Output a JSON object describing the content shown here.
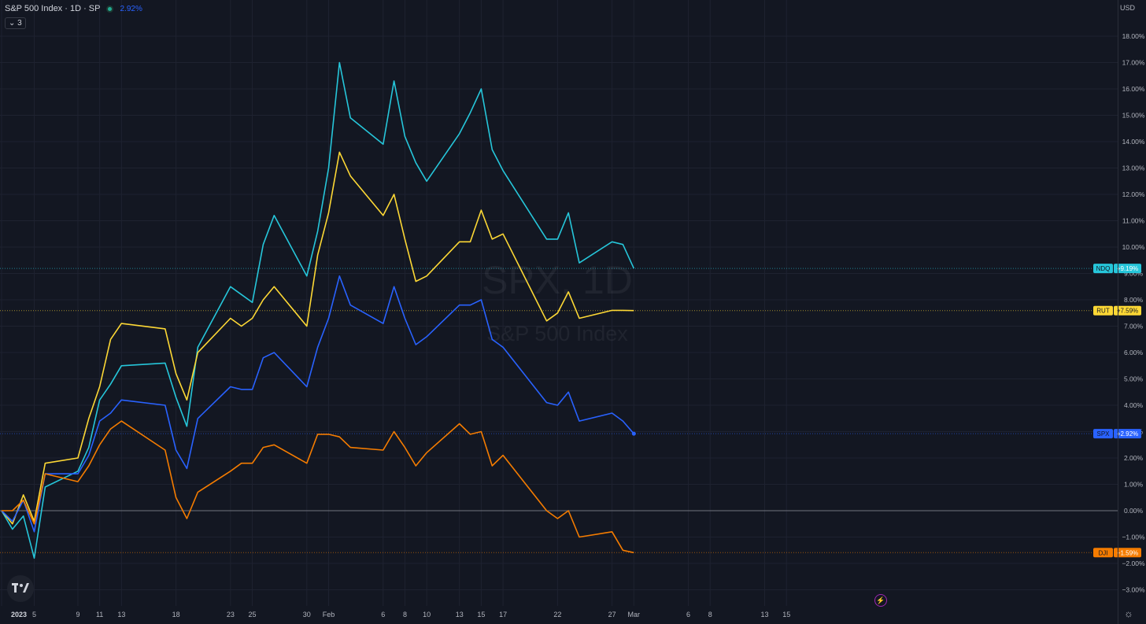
{
  "header": {
    "symbol_title": "S&P 500 Index · 1D · SP",
    "change_text": "2.92%",
    "collapse_label": "3"
  },
  "axis": {
    "currency_label": "USD"
  },
  "watermark": {
    "line1": "SPX, 1D",
    "line2": "S&P 500 Index"
  },
  "colors": {
    "background": "#131722",
    "grid": "#1e2230",
    "spx": "#2962ff",
    "ndq": "#26c6da",
    "rut": "#fdd835",
    "dji": "#f57c00"
  },
  "chart_data": {
    "type": "line",
    "x": [
      "2023-01-02",
      "2023-01-03",
      "2023-01-04",
      "2023-01-05",
      "2023-01-06",
      "2023-01-09",
      "2023-01-10",
      "2023-01-11",
      "2023-01-12",
      "2023-01-13",
      "2023-01-17",
      "2023-01-18",
      "2023-01-19",
      "2023-01-20",
      "2023-01-23",
      "2023-01-24",
      "2023-01-25",
      "2023-01-26",
      "2023-01-27",
      "2023-01-30",
      "2023-01-31",
      "2023-02-01",
      "2023-02-02",
      "2023-02-03",
      "2023-02-06",
      "2023-02-07",
      "2023-02-08",
      "2023-02-09",
      "2023-02-10",
      "2023-02-13",
      "2023-02-14",
      "2023-02-15",
      "2023-02-16",
      "2023-02-17",
      "2023-02-21",
      "2023-02-22",
      "2023-02-23",
      "2023-02-24",
      "2023-02-27",
      "2023-02-28",
      "2023-03-01"
    ],
    "x_ticks": [
      "2023",
      "5",
      "9",
      "11",
      "13",
      "18",
      "23",
      "25",
      "30",
      "Feb",
      "6",
      "8",
      "10",
      "13",
      "15",
      "17",
      "22",
      "27",
      "Mar",
      "6",
      "8",
      "13",
      "15"
    ],
    "y_ticks": [
      "18.00%",
      "17.00%",
      "16.00%",
      "15.00%",
      "14.00%",
      "13.00%",
      "12.00%",
      "11.00%",
      "10.00%",
      "9.00%",
      "8.00%",
      "7.00%",
      "6.00%",
      "5.00%",
      "4.00%",
      "3.00%",
      "2.00%",
      "1.00%",
      "0.00%",
      "−1.00%",
      "−2.00%",
      "−3.00%"
    ],
    "ylim": [
      -3.5,
      19
    ],
    "series": [
      {
        "name": "NDQ",
        "end_label": "+9.19%",
        "color": "#26c6da",
        "values": [
          0,
          -0.7,
          -0.2,
          -1.8,
          0.9,
          1.5,
          2.4,
          4.2,
          4.8,
          5.5,
          5.6,
          4.3,
          3.2,
          6.2,
          8.5,
          8.2,
          7.9,
          10.1,
          11.2,
          8.9,
          10.6,
          13.0,
          17.0,
          14.9,
          13.9,
          16.3,
          14.2,
          13.2,
          12.5,
          14.3,
          15.1,
          16.0,
          13.7,
          12.9,
          10.3,
          10.3,
          11.3,
          9.4,
          10.2,
          10.1,
          9.19
        ]
      },
      {
        "name": "RUT",
        "end_label": "+7.59%",
        "color": "#fdd835",
        "values": [
          0,
          -0.5,
          0.6,
          -0.4,
          1.8,
          2.0,
          3.5,
          4.7,
          6.5,
          7.1,
          6.9,
          5.2,
          4.2,
          6.0,
          7.3,
          7.0,
          7.3,
          8.0,
          8.5,
          7.0,
          9.7,
          11.3,
          13.6,
          12.7,
          11.2,
          12.0,
          10.3,
          8.7,
          8.9,
          10.2,
          10.2,
          11.4,
          10.3,
          10.5,
          7.2,
          7.5,
          8.3,
          7.3,
          7.6,
          7.6,
          7.59
        ]
      },
      {
        "name": "SPX",
        "end_label": "+2.92%",
        "color": "#2962ff",
        "values": [
          0,
          -0.4,
          0.4,
          -0.8,
          1.4,
          1.4,
          2.1,
          3.4,
          3.7,
          4.2,
          4.0,
          2.3,
          1.6,
          3.5,
          4.7,
          4.6,
          4.6,
          5.8,
          6.0,
          4.7,
          6.2,
          7.3,
          8.9,
          7.8,
          7.1,
          8.5,
          7.3,
          6.3,
          6.6,
          7.8,
          7.8,
          8.0,
          6.5,
          6.2,
          4.1,
          4.0,
          4.5,
          3.4,
          3.7,
          3.4,
          2.92
        ]
      },
      {
        "name": "DJI",
        "end_label": "−1.59%",
        "color": "#f57c00",
        "values": [
          0,
          0,
          0.4,
          -0.5,
          1.4,
          1.1,
          1.7,
          2.5,
          3.1,
          3.4,
          2.3,
          0.5,
          -0.3,
          0.7,
          1.5,
          1.8,
          1.8,
          2.4,
          2.5,
          1.8,
          2.9,
          2.9,
          2.8,
          2.4,
          2.3,
          3.0,
          2.4,
          1.7,
          2.2,
          3.3,
          2.9,
          3.0,
          1.7,
          2.1,
          0,
          -0.3,
          0,
          -1.0,
          -0.8,
          -1.5,
          -1.59
        ]
      }
    ]
  }
}
